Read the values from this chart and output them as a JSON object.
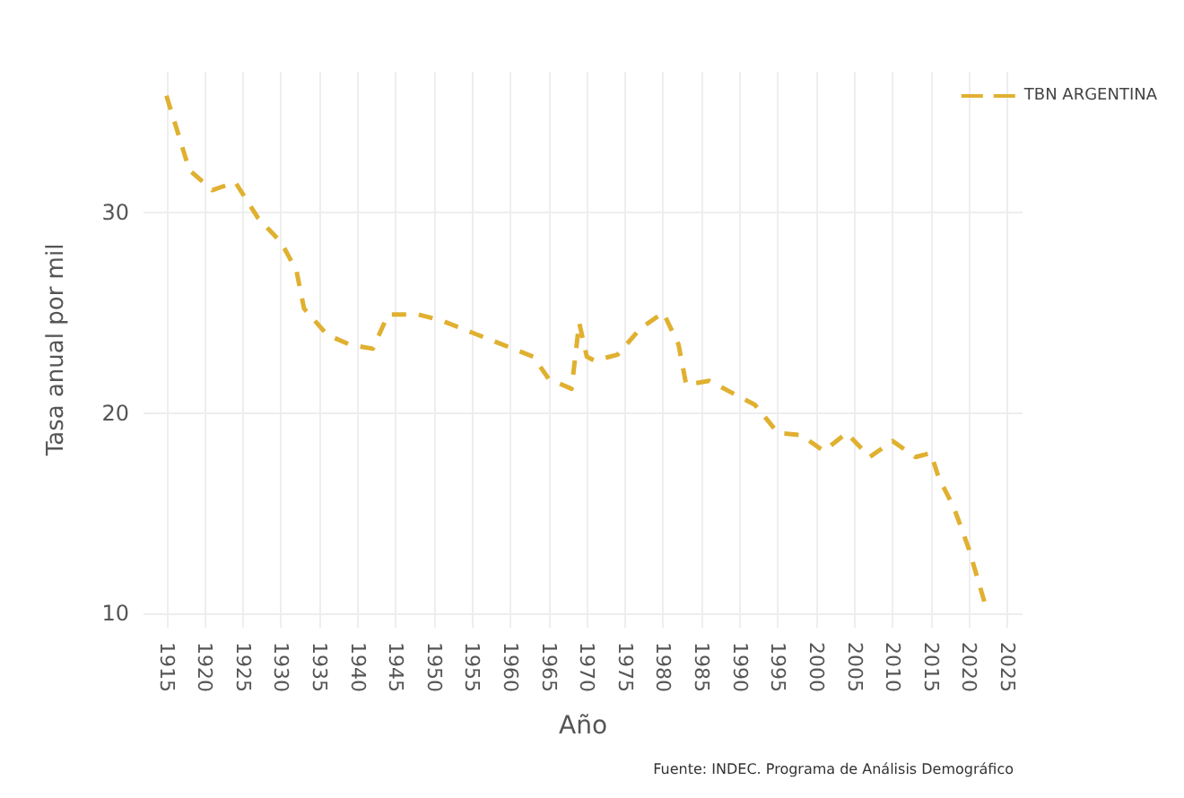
{
  "chart_data": {
    "type": "line",
    "xlabel": "Año",
    "ylabel": "Tasa anual por mil",
    "annotations": [
      "Fuente: INDEC. Programa de Análisis Demográfico"
    ],
    "series": [
      {
        "name": "TBN ARGENTINA",
        "color": "#e0b030",
        "line_style": "dashed",
        "x": [
          1915,
          1918,
          1921,
          1924,
          1927,
          1930,
          1932,
          1933,
          1936,
          1939,
          1942,
          1944,
          1948,
          1951,
          1955,
          1959,
          1963,
          1965,
          1968,
          1969,
          1970,
          1971,
          1974,
          1977,
          1980,
          1982,
          1983,
          1986,
          1989,
          1992,
          1995,
          1998,
          2001,
          2004,
          2007,
          2010,
          2013,
          2015,
          2016,
          2018,
          2020,
          2022
        ],
        "values": [
          35.8,
          32.1,
          31.1,
          31.5,
          29.7,
          28.5,
          27.1,
          25.2,
          23.9,
          23.4,
          23.2,
          24.9,
          24.9,
          24.6,
          24.0,
          23.4,
          22.8,
          21.7,
          21.2,
          24.5,
          22.8,
          22.6,
          22.9,
          24.2,
          25.0,
          23.4,
          21.4,
          21.6,
          21.0,
          20.4,
          19.0,
          18.9,
          18.1,
          19.0,
          17.8,
          18.6,
          17.8,
          18.0,
          16.8,
          15.3,
          13.2,
          10.6
        ]
      }
    ],
    "xlim": [
      1912,
      2027
    ],
    "xticks": [
      1915,
      1920,
      1925,
      1930,
      1935,
      1940,
      1945,
      1950,
      1955,
      1960,
      1965,
      1970,
      1975,
      1980,
      1985,
      1990,
      1995,
      2000,
      2005,
      2010,
      2015,
      2020,
      2025
    ],
    "ylim": [
      9.3,
      37
    ],
    "yticks": [
      10,
      20,
      30
    ],
    "grid": true,
    "legend": "top right",
    "marker": "none"
  }
}
